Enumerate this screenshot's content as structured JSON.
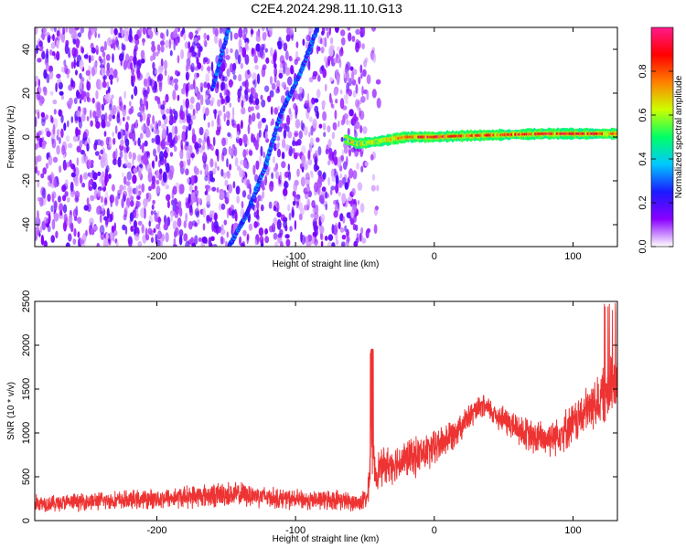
{
  "title": "C2E4.2024.298.11.10.G13",
  "chart_data": [
    {
      "type": "heatmap",
      "xlabel": "Height of straight line (km)",
      "ylabel": "Frequency (Hz)",
      "xlim": [
        -288,
        132
      ],
      "ylim": [
        -50,
        50
      ],
      "xticks": [
        -200,
        -100,
        0,
        100
      ],
      "xtick_labels": [
        "-200",
        "-100",
        "0",
        "100"
      ],
      "yticks": [
        -40,
        -20,
        0,
        20,
        40
      ],
      "ytick_labels": [
        "-40",
        "-20",
        "0",
        "20",
        "40"
      ],
      "grid": false,
      "noise_region_x": [
        -288,
        -50
      ],
      "signal_trace": [
        {
          "x": -64,
          "y": -1,
          "amplitude": 0.4
        },
        {
          "x": -55,
          "y": -3,
          "amplitude": 0.5
        },
        {
          "x": -40,
          "y": -2,
          "amplitude": 0.6
        },
        {
          "x": -20,
          "y": 0,
          "amplitude": 0.85
        },
        {
          "x": 0,
          "y": 0,
          "amplitude": 0.95
        },
        {
          "x": 20,
          "y": 0.5,
          "amplitude": 0.9
        },
        {
          "x": 50,
          "y": 1,
          "amplitude": 0.85
        },
        {
          "x": 80,
          "y": 1.5,
          "amplitude": 0.95
        },
        {
          "x": 110,
          "y": 1.5,
          "amplitude": 0.9
        },
        {
          "x": 132,
          "y": 1.5,
          "amplitude": 0.85
        }
      ],
      "streaks": [
        {
          "x": [
            -148,
            -135,
            -121,
            -111,
            -96,
            -84
          ],
          "y": [
            -50,
            -35,
            -12,
            10,
            30,
            50
          ],
          "amplitude": 0.3
        },
        {
          "x": [
            -160,
            -148
          ],
          "y": [
            22,
            50
          ],
          "amplitude": 0.3
        }
      ],
      "colorbar": {
        "label": "Normalized spectral amplitude",
        "range": [
          0,
          1
        ],
        "ticks": [
          0.0,
          0.2,
          0.4,
          0.6,
          0.8
        ],
        "tick_labels": [
          "0.0",
          "0.2",
          "0.4",
          "0.6",
          "0.8"
        ],
        "colormap": [
          "#ffffff",
          "#8a00ff",
          "#1a1aff",
          "#00c8ff",
          "#00ff66",
          "#ccff00",
          "#ff8000",
          "#ff0000",
          "#ff1a8c"
        ]
      }
    },
    {
      "type": "line",
      "xlabel": "Height of straight line (km)",
      "ylabel": "SNR (10 * v/v)",
      "xlim": [
        -288,
        132
      ],
      "ylim": [
        0,
        2500
      ],
      "xticks": [
        -200,
        -100,
        0,
        100
      ],
      "xtick_labels": [
        "-200",
        "-100",
        "0",
        "100"
      ],
      "yticks": [
        0,
        500,
        1000,
        1500,
        2000,
        2500
      ],
      "ytick_labels": [
        "0",
        "500",
        "1000",
        "1500",
        "2000",
        "2500"
      ],
      "grid": false,
      "color": "#ee3333",
      "series": [
        {
          "x": [
            -288,
            -270,
            -250,
            -230,
            -210,
            -190,
            -170,
            -150,
            -130,
            -110,
            -90,
            -70,
            -55,
            -48,
            -45,
            -44,
            -42,
            -40,
            -30,
            -20,
            -10,
            0,
            10,
            20,
            30,
            35,
            40,
            50,
            60,
            70,
            80,
            90,
            100,
            110,
            120,
            132
          ],
          "center": [
            200,
            200,
            220,
            230,
            240,
            260,
            280,
            300,
            290,
            250,
            230,
            240,
            200,
            260,
            900,
            700,
            520,
            600,
            650,
            700,
            750,
            820,
            950,
            1100,
            1250,
            1300,
            1260,
            1150,
            1050,
            950,
            930,
            1000,
            1100,
            1250,
            1400,
            1600
          ],
          "spread": [
            220,
            220,
            230,
            240,
            250,
            270,
            300,
            330,
            300,
            260,
            250,
            260,
            220,
            300,
            900,
            600,
            450,
            480,
            500,
            500,
            520,
            480,
            450,
            380,
            300,
            300,
            320,
            380,
            420,
            450,
            480,
            520,
            560,
            620,
            700,
            800
          ]
        }
      ]
    }
  ]
}
